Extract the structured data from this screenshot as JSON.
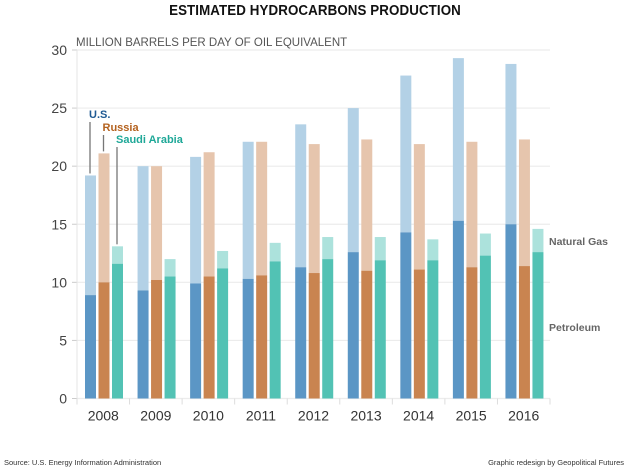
{
  "title": "ESTIMATED HYDROCARBONS PRODUCTION",
  "footer": {
    "source": "Source: U.S. Energy Information Administration",
    "credit": "Graphic redesign by Geopolitical Futures"
  },
  "chart_data": {
    "type": "bar",
    "title": "ESTIMATED HYDROCARBONS PRODUCTION",
    "subtitle": "MILLION BARRELS PER DAY OF OIL EQUIVALENT",
    "xlabel": "",
    "ylabel": "MILLION BARRELS PER DAY OF OIL EQUIVALENT",
    "ylim": [
      0,
      30
    ],
    "yticks": [
      0,
      5,
      10,
      15,
      20,
      25,
      30
    ],
    "grid": true,
    "categories": [
      "2008",
      "2009",
      "2010",
      "2011",
      "2012",
      "2013",
      "2014",
      "2015",
      "2016"
    ],
    "layers": [
      "Petroleum",
      "Natural Gas"
    ],
    "layer_labels": {
      "petroleum": "Petroleum",
      "natural_gas": "Natural Gas"
    },
    "series": [
      {
        "name": "U.S.",
        "label_color": "#1f5a93",
        "petroleum_color": "#5b96c5",
        "gas_color": "#b3d1e6",
        "petroleum": [
          8.9,
          9.3,
          9.9,
          10.3,
          11.3,
          12.6,
          14.3,
          15.3,
          15.0
        ],
        "total": [
          19.2,
          20.0,
          20.8,
          22.1,
          23.6,
          25.0,
          27.8,
          29.3,
          28.8
        ]
      },
      {
        "name": "Russia",
        "label_color": "#b4621f",
        "petroleum_color": "#c98450",
        "gas_color": "#e6c5ad",
        "petroleum": [
          10.0,
          10.2,
          10.5,
          10.6,
          10.8,
          11.0,
          11.1,
          11.3,
          11.4
        ],
        "total": [
          21.1,
          20.0,
          21.2,
          22.1,
          21.9,
          22.3,
          21.9,
          22.1,
          22.3
        ]
      },
      {
        "name": "Saudi Arabia",
        "label_color": "#1fa898",
        "petroleum_color": "#52c2b4",
        "gas_color": "#ace2dc",
        "petroleum": [
          11.6,
          10.5,
          11.2,
          11.8,
          12.0,
          11.9,
          11.9,
          12.3,
          12.6
        ],
        "total": [
          13.1,
          12.0,
          12.7,
          13.4,
          13.9,
          13.9,
          13.7,
          14.2,
          14.6
        ]
      }
    ],
    "legend_placement": "right"
  }
}
